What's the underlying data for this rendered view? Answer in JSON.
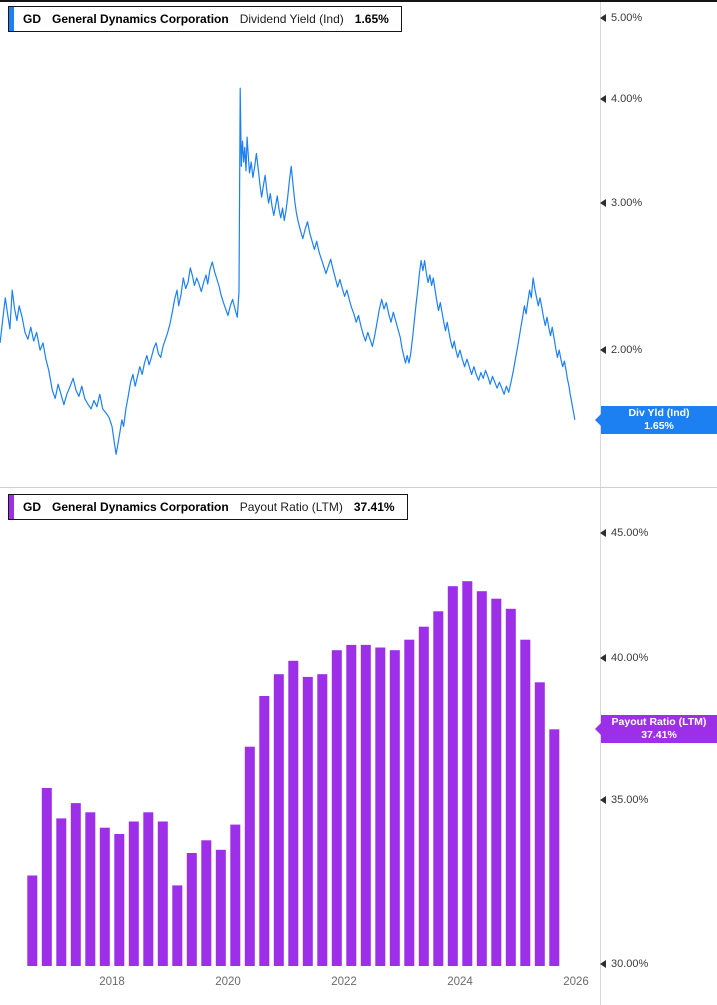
{
  "top_chart": {
    "ticker": "GD",
    "company": "General Dynamics Corporation",
    "metric": "Dividend Yield (Ind)",
    "value": "1.65%",
    "accent": "#1d80f2",
    "badge": {
      "label": "Div Yld (Ind)",
      "value": "1.65%"
    },
    "y_ticks": [
      {
        "value": 5,
        "label": "5.00%"
      },
      {
        "value": 4,
        "label": "4.00%"
      },
      {
        "value": 3,
        "label": "3.00%"
      },
      {
        "value": 2,
        "label": "2.00%"
      }
    ]
  },
  "bottom_chart": {
    "ticker": "GD",
    "company": "General Dynamics Corporation",
    "metric": "Payout Ratio (LTM)",
    "value": "37.41%",
    "accent": "#9e2fe8",
    "badge": {
      "label": "Payout Ratio (LTM)",
      "value": "37.41%"
    },
    "y_ticks": [
      {
        "value": 45,
        "label": "45.00%"
      },
      {
        "value": 40,
        "label": "40.00%"
      },
      {
        "value": 35,
        "label": "35.00%"
      },
      {
        "value": 30,
        "label": "30.00%"
      }
    ],
    "x_ticks": [
      {
        "value": 2018,
        "label": "2018"
      },
      {
        "value": 2020,
        "label": "2020"
      },
      {
        "value": 2022,
        "label": "2022"
      },
      {
        "value": 2024,
        "label": "2024"
      },
      {
        "value": 2026,
        "label": "2026"
      }
    ]
  },
  "chart_data": [
    {
      "type": "line",
      "title": "GD General Dynamics Corporation Dividend Yield (Ind) 1.65%",
      "series": "Div Yld (Ind)",
      "unit": "percent",
      "latest": 1.65,
      "y_scale": "log",
      "y_ticks": [
        5,
        4,
        3,
        2
      ],
      "y_tick_labels": [
        "5.00%",
        "4.00%",
        "3.00%",
        "2.00%"
      ],
      "x_range": [
        2016.07,
        2025.98
      ],
      "points_note": "x is decimal year, y is dividend yield percent (approximate daily series)",
      "points": [
        [
          2016.07,
          2.04
        ],
        [
          2016.12,
          2.19
        ],
        [
          2016.16,
          2.31
        ],
        [
          2016.2,
          2.21
        ],
        [
          2016.24,
          2.12
        ],
        [
          2016.28,
          2.36
        ],
        [
          2016.32,
          2.24
        ],
        [
          2016.36,
          2.17
        ],
        [
          2016.4,
          2.26
        ],
        [
          2016.45,
          2.19
        ],
        [
          2016.5,
          2.1
        ],
        [
          2016.55,
          2.06
        ],
        [
          2016.6,
          2.13
        ],
        [
          2016.65,
          2.05
        ],
        [
          2016.7,
          2.1
        ],
        [
          2016.76,
          2.0
        ],
        [
          2016.81,
          2.04
        ],
        [
          2016.86,
          1.95
        ],
        [
          2016.91,
          1.89
        ],
        [
          2016.97,
          1.79
        ],
        [
          2017.02,
          1.75
        ],
        [
          2017.07,
          1.82
        ],
        [
          2017.12,
          1.77
        ],
        [
          2017.17,
          1.72
        ],
        [
          2017.22,
          1.77
        ],
        [
          2017.28,
          1.81
        ],
        [
          2017.33,
          1.85
        ],
        [
          2017.38,
          1.79
        ],
        [
          2017.43,
          1.76
        ],
        [
          2017.48,
          1.81
        ],
        [
          2017.53,
          1.75
        ],
        [
          2017.59,
          1.72
        ],
        [
          2017.64,
          1.7
        ],
        [
          2017.69,
          1.74
        ],
        [
          2017.74,
          1.71
        ],
        [
          2017.79,
          1.77
        ],
        [
          2017.84,
          1.7
        ],
        [
          2017.9,
          1.68
        ],
        [
          2017.95,
          1.66
        ],
        [
          2018.0,
          1.62
        ],
        [
          2018.04,
          1.55
        ],
        [
          2018.07,
          1.5
        ],
        [
          2018.1,
          1.54
        ],
        [
          2018.14,
          1.6
        ],
        [
          2018.17,
          1.65
        ],
        [
          2018.2,
          1.62
        ],
        [
          2018.24,
          1.7
        ],
        [
          2018.28,
          1.76
        ],
        [
          2018.32,
          1.83
        ],
        [
          2018.36,
          1.87
        ],
        [
          2018.4,
          1.81
        ],
        [
          2018.44,
          1.86
        ],
        [
          2018.48,
          1.91
        ],
        [
          2018.52,
          1.87
        ],
        [
          2018.56,
          1.93
        ],
        [
          2018.6,
          1.97
        ],
        [
          2018.64,
          1.92
        ],
        [
          2018.68,
          1.96
        ],
        [
          2018.72,
          2.01
        ],
        [
          2018.76,
          2.04
        ],
        [
          2018.8,
          1.98
        ],
        [
          2018.84,
          1.96
        ],
        [
          2018.88,
          2.02
        ],
        [
          2018.92,
          2.06
        ],
        [
          2018.96,
          2.1
        ],
        [
          2019.0,
          2.15
        ],
        [
          2019.04,
          2.22
        ],
        [
          2019.08,
          2.3
        ],
        [
          2019.12,
          2.36
        ],
        [
          2019.15,
          2.26
        ],
        [
          2019.19,
          2.33
        ],
        [
          2019.23,
          2.44
        ],
        [
          2019.27,
          2.37
        ],
        [
          2019.31,
          2.41
        ],
        [
          2019.35,
          2.51
        ],
        [
          2019.39,
          2.45
        ],
        [
          2019.42,
          2.39
        ],
        [
          2019.46,
          2.44
        ],
        [
          2019.5,
          2.4
        ],
        [
          2019.54,
          2.35
        ],
        [
          2019.58,
          2.41
        ],
        [
          2019.62,
          2.46
        ],
        [
          2019.65,
          2.4
        ],
        [
          2019.69,
          2.5
        ],
        [
          2019.73,
          2.55
        ],
        [
          2019.77,
          2.48
        ],
        [
          2019.81,
          2.43
        ],
        [
          2019.85,
          2.38
        ],
        [
          2019.88,
          2.33
        ],
        [
          2019.92,
          2.28
        ],
        [
          2019.96,
          2.24
        ],
        [
          2020.0,
          2.2
        ],
        [
          2020.04,
          2.26
        ],
        [
          2020.08,
          2.3
        ],
        [
          2020.12,
          2.24
        ],
        [
          2020.16,
          2.19
        ],
        [
          2020.19,
          2.35
        ],
        [
          2020.21,
          4.12
        ],
        [
          2020.23,
          3.32
        ],
        [
          2020.25,
          3.56
        ],
        [
          2020.27,
          3.36
        ],
        [
          2020.29,
          3.5
        ],
        [
          2020.31,
          3.28
        ],
        [
          2020.33,
          3.6
        ],
        [
          2020.35,
          3.42
        ],
        [
          2020.37,
          3.26
        ],
        [
          2020.4,
          3.36
        ],
        [
          2020.43,
          3.22
        ],
        [
          2020.46,
          3.32
        ],
        [
          2020.49,
          3.44
        ],
        [
          2020.52,
          3.3
        ],
        [
          2020.55,
          3.16
        ],
        [
          2020.58,
          3.05
        ],
        [
          2020.61,
          3.15
        ],
        [
          2020.64,
          3.24
        ],
        [
          2020.67,
          3.1
        ],
        [
          2020.7,
          3.0
        ],
        [
          2020.73,
          3.08
        ],
        [
          2020.76,
          2.97
        ],
        [
          2020.79,
          2.9
        ],
        [
          2020.82,
          2.98
        ],
        [
          2020.85,
          3.06
        ],
        [
          2020.88,
          2.95
        ],
        [
          2020.91,
          2.88
        ],
        [
          2020.94,
          2.96
        ],
        [
          2020.97,
          2.86
        ],
        [
          2021.0,
          2.94
        ],
        [
          2021.03,
          3.05
        ],
        [
          2021.06,
          3.2
        ],
        [
          2021.09,
          3.32
        ],
        [
          2021.12,
          3.16
        ],
        [
          2021.15,
          3.02
        ],
        [
          2021.18,
          2.92
        ],
        [
          2021.21,
          2.85
        ],
        [
          2021.25,
          2.78
        ],
        [
          2021.29,
          2.72
        ],
        [
          2021.33,
          2.79
        ],
        [
          2021.37,
          2.85
        ],
        [
          2021.41,
          2.76
        ],
        [
          2021.45,
          2.7
        ],
        [
          2021.49,
          2.64
        ],
        [
          2021.53,
          2.7
        ],
        [
          2021.57,
          2.62
        ],
        [
          2021.61,
          2.57
        ],
        [
          2021.65,
          2.52
        ],
        [
          2021.69,
          2.47
        ],
        [
          2021.73,
          2.52
        ],
        [
          2021.77,
          2.57
        ],
        [
          2021.81,
          2.5
        ],
        [
          2021.85,
          2.44
        ],
        [
          2021.89,
          2.38
        ],
        [
          2021.93,
          2.43
        ],
        [
          2021.97,
          2.37
        ],
        [
          2022.01,
          2.32
        ],
        [
          2022.05,
          2.36
        ],
        [
          2022.09,
          2.3
        ],
        [
          2022.13,
          2.25
        ],
        [
          2022.17,
          2.21
        ],
        [
          2022.21,
          2.16
        ],
        [
          2022.25,
          2.2
        ],
        [
          2022.29,
          2.14
        ],
        [
          2022.33,
          2.09
        ],
        [
          2022.37,
          2.05
        ],
        [
          2022.41,
          2.1
        ],
        [
          2022.45,
          2.06
        ],
        [
          2022.49,
          2.02
        ],
        [
          2022.53,
          2.08
        ],
        [
          2022.57,
          2.16
        ],
        [
          2022.61,
          2.24
        ],
        [
          2022.65,
          2.3
        ],
        [
          2022.69,
          2.24
        ],
        [
          2022.73,
          2.28
        ],
        [
          2022.77,
          2.21
        ],
        [
          2022.81,
          2.16
        ],
        [
          2022.85,
          2.22
        ],
        [
          2022.89,
          2.17
        ],
        [
          2022.93,
          2.12
        ],
        [
          2022.97,
          2.07
        ],
        [
          2023.0,
          2.01
        ],
        [
          2023.03,
          1.97
        ],
        [
          2023.06,
          1.93
        ],
        [
          2023.09,
          1.97
        ],
        [
          2023.12,
          1.93
        ],
        [
          2023.15,
          1.98
        ],
        [
          2023.18,
          2.06
        ],
        [
          2023.21,
          2.16
        ],
        [
          2023.24,
          2.26
        ],
        [
          2023.27,
          2.36
        ],
        [
          2023.3,
          2.47
        ],
        [
          2023.33,
          2.56
        ],
        [
          2023.36,
          2.49
        ],
        [
          2023.39,
          2.56
        ],
        [
          2023.42,
          2.47
        ],
        [
          2023.45,
          2.41
        ],
        [
          2023.48,
          2.46
        ],
        [
          2023.51,
          2.39
        ],
        [
          2023.54,
          2.44
        ],
        [
          2023.57,
          2.36
        ],
        [
          2023.6,
          2.29
        ],
        [
          2023.63,
          2.23
        ],
        [
          2023.66,
          2.28
        ],
        [
          2023.69,
          2.22
        ],
        [
          2023.72,
          2.16
        ],
        [
          2023.75,
          2.11
        ],
        [
          2023.78,
          2.16
        ],
        [
          2023.81,
          2.1
        ],
        [
          2023.84,
          2.05
        ],
        [
          2023.87,
          2.01
        ],
        [
          2023.9,
          2.05
        ],
        [
          2023.93,
          2.0
        ],
        [
          2023.96,
          1.96
        ],
        [
          2024.0,
          2.0
        ],
        [
          2024.04,
          1.95
        ],
        [
          2024.08,
          1.91
        ],
        [
          2024.12,
          1.95
        ],
        [
          2024.16,
          1.91
        ],
        [
          2024.2,
          1.87
        ],
        [
          2024.24,
          1.91
        ],
        [
          2024.28,
          1.87
        ],
        [
          2024.32,
          1.84
        ],
        [
          2024.36,
          1.88
        ],
        [
          2024.4,
          1.85
        ],
        [
          2024.44,
          1.89
        ],
        [
          2024.48,
          1.86
        ],
        [
          2024.52,
          1.82
        ],
        [
          2024.56,
          1.86
        ],
        [
          2024.6,
          1.83
        ],
        [
          2024.64,
          1.8
        ],
        [
          2024.68,
          1.83
        ],
        [
          2024.72,
          1.8
        ],
        [
          2024.76,
          1.77
        ],
        [
          2024.8,
          1.81
        ],
        [
          2024.84,
          1.78
        ],
        [
          2024.88,
          1.83
        ],
        [
          2024.92,
          1.89
        ],
        [
          2024.96,
          1.96
        ],
        [
          2025.0,
          2.03
        ],
        [
          2025.04,
          2.11
        ],
        [
          2025.08,
          2.19
        ],
        [
          2025.11,
          2.26
        ],
        [
          2025.14,
          2.21
        ],
        [
          2025.17,
          2.29
        ],
        [
          2025.2,
          2.36
        ],
        [
          2025.23,
          2.31
        ],
        [
          2025.26,
          2.44
        ],
        [
          2025.29,
          2.37
        ],
        [
          2025.32,
          2.31
        ],
        [
          2025.35,
          2.26
        ],
        [
          2025.38,
          2.31
        ],
        [
          2025.41,
          2.25
        ],
        [
          2025.44,
          2.19
        ],
        [
          2025.47,
          2.14
        ],
        [
          2025.5,
          2.19
        ],
        [
          2025.53,
          2.13
        ],
        [
          2025.56,
          2.08
        ],
        [
          2025.59,
          2.13
        ],
        [
          2025.62,
          2.07
        ],
        [
          2025.65,
          2.01
        ],
        [
          2025.68,
          1.96
        ],
        [
          2025.71,
          2.0
        ],
        [
          2025.74,
          1.95
        ],
        [
          2025.77,
          1.91
        ],
        [
          2025.8,
          1.94
        ],
        [
          2025.83,
          1.89
        ],
        [
          2025.85,
          1.85
        ],
        [
          2025.88,
          1.81
        ],
        [
          2025.9,
          1.77
        ],
        [
          2025.92,
          1.74
        ],
        [
          2025.94,
          1.71
        ],
        [
          2025.96,
          1.68
        ],
        [
          2025.98,
          1.65
        ]
      ]
    },
    {
      "type": "bar",
      "title": "GD General Dynamics Corporation Payout Ratio (LTM) 37.41%",
      "series": "Payout Ratio (LTM)",
      "unit": "percent",
      "latest": 37.41,
      "y_scale": "log",
      "y_ticks": [
        45,
        40,
        35,
        30
      ],
      "y_tick_labels": [
        "45.00%",
        "40.00%",
        "35.00%",
        "30.00%"
      ],
      "x_tick_labels": [
        "2018",
        "2020",
        "2022",
        "2024",
        "2026"
      ],
      "categories": [
        "2016 Q3",
        "2016 Q4",
        "2017 Q1",
        "2017 Q2",
        "2017 Q3",
        "2017 Q4",
        "2018 Q1",
        "2018 Q2",
        "2018 Q3",
        "2018 Q4",
        "2019 Q1",
        "2019 Q2",
        "2019 Q3",
        "2019 Q4",
        "2020 Q1",
        "2020 Q2",
        "2020 Q3",
        "2020 Q4",
        "2021 Q1",
        "2021 Q2",
        "2021 Q3",
        "2021 Q4",
        "2022 Q1",
        "2022 Q2",
        "2022 Q3",
        "2022 Q4",
        "2023 Q1",
        "2023 Q2",
        "2023 Q3",
        "2023 Q4",
        "2024 Q1",
        "2024 Q2",
        "2024 Q3",
        "2024 Q4",
        "2025 Q1",
        "2025 Q2",
        "2025 Q3"
      ],
      "values": [
        32.6,
        35.4,
        34.4,
        34.9,
        34.6,
        34.1,
        33.9,
        34.3,
        34.6,
        34.3,
        32.3,
        33.3,
        33.7,
        33.4,
        34.2,
        36.8,
        38.6,
        39.4,
        39.9,
        39.3,
        39.4,
        40.3,
        40.5,
        40.5,
        40.4,
        40.3,
        40.7,
        41.2,
        41.8,
        42.8,
        43.0,
        42.6,
        42.3,
        41.9,
        40.7,
        39.1,
        37.41
      ]
    }
  ]
}
